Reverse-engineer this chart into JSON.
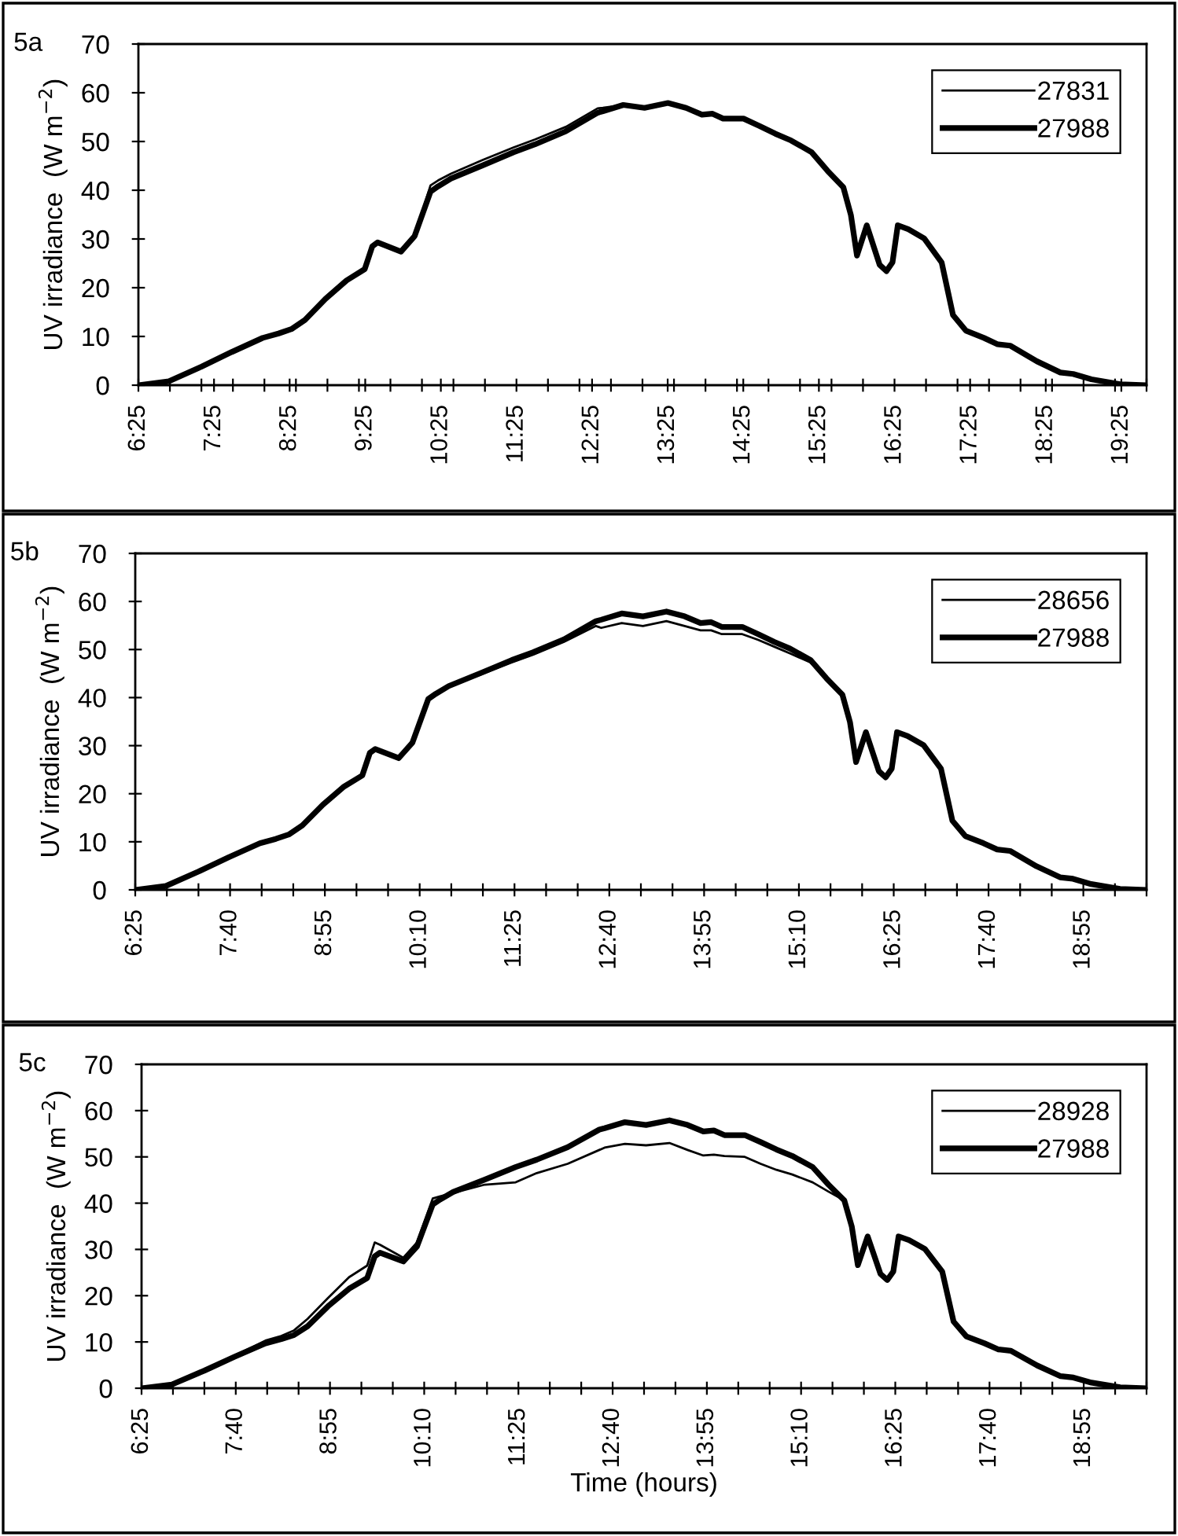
{
  "chart_data": [
    {
      "type": "line",
      "title": "5a",
      "ylabel": "UV irradiance  (W m$^{−2}$)",
      "legend": "top right",
      "x": [
        6.42,
        6.82,
        7.25,
        7.65,
        8.06,
        8.27,
        8.44,
        8.62,
        8.89,
        9.17,
        9.41,
        9.51,
        9.58,
        9.89,
        10.07,
        10.28,
        10.38,
        10.55,
        10.97,
        11.38,
        11.66,
        12.07,
        12.49,
        12.56,
        12.83,
        13.11,
        13.42,
        13.66,
        13.87,
        14.01,
        14.15,
        14.42,
        14.63,
        14.84,
        15.05,
        15.32,
        15.53,
        15.74,
        15.84,
        15.92,
        16.05,
        16.22,
        16.31,
        16.39,
        16.46,
        16.6,
        16.81,
        17.04,
        17.19,
        17.36,
        17.6,
        17.78,
        17.95,
        18.3,
        18.61,
        18.78,
        19.02,
        19.4,
        19.73
      ],
      "series": [
        {
          "name": "27831",
          "color": "#000000",
          "values": [
            0,
            0.8,
            3.8,
            6.8,
            9.7,
            10.6,
            11.5,
            13.4,
            17.7,
            21.5,
            23.8,
            28.5,
            29.3,
            27.4,
            30.6,
            41,
            42,
            43.4,
            46.2,
            48.8,
            50.4,
            53,
            56.8,
            56.9,
            57.5,
            56.9,
            57.9,
            56.9,
            55.5,
            55.7,
            54.7,
            54.7,
            53.2,
            51.6,
            50.2,
            47.8,
            44,
            40.6,
            34.9,
            26.6,
            32.8,
            24.7,
            23.4,
            25.2,
            32.8,
            32,
            30.1,
            25.2,
            14.4,
            11.2,
            9.7,
            8.4,
            8.1,
            4.9,
            2.6,
            2.3,
            1.2,
            0.2,
            0
          ]
        },
        {
          "name": "27988",
          "color": "#000000",
          "values": [
            0,
            0.8,
            3.8,
            6.8,
            9.7,
            10.6,
            11.5,
            13.4,
            17.7,
            21.5,
            23.8,
            28.5,
            29.3,
            27.4,
            30.6,
            39.7,
            40.8,
            42.4,
            45.1,
            47.8,
            49.4,
            52.1,
            55.9,
            56.2,
            57.5,
            56.9,
            57.9,
            56.9,
            55.5,
            55.7,
            54.7,
            54.7,
            53.2,
            51.6,
            50.2,
            47.8,
            44,
            40.6,
            34.9,
            26.6,
            32.8,
            24.7,
            23.4,
            25.2,
            32.8,
            32,
            30.1,
            25.2,
            14.4,
            11.2,
            9.7,
            8.4,
            8.1,
            4.9,
            2.6,
            2.3,
            1.2,
            0.2,
            0
          ]
        }
      ],
      "xlim": [
        6.4167,
        19.75
      ],
      "ylim": [
        0,
        70
      ],
      "yticks": [
        0,
        10,
        20,
        30,
        40,
        50,
        60,
        70
      ],
      "xticks": [
        {
          "value": 6.4167,
          "label": "6:25"
        },
        {
          "value": 7.4167,
          "label": "7:25"
        },
        {
          "value": 8.4167,
          "label": "8:25"
        },
        {
          "value": 9.4167,
          "label": "9:25"
        },
        {
          "value": 10.4167,
          "label": "10:25"
        },
        {
          "value": 11.4167,
          "label": "11:25"
        },
        {
          "value": 12.4167,
          "label": "12:25"
        },
        {
          "value": 13.4167,
          "label": "13:25"
        },
        {
          "value": 14.4167,
          "label": "14:25"
        },
        {
          "value": 15.4167,
          "label": "15:25"
        },
        {
          "value": 16.4167,
          "label": "16:25"
        },
        {
          "value": 17.4167,
          "label": "17:25"
        },
        {
          "value": 18.4167,
          "label": "18:25"
        },
        {
          "value": 19.4167,
          "label": "19:25"
        },
        {
          "value": 6.8333,
          "label": null
        },
        {
          "value": 7.25,
          "label": null
        },
        {
          "value": 7.6667,
          "label": null
        },
        {
          "value": 8.0833,
          "label": null
        },
        {
          "value": 8.5,
          "label": null
        },
        {
          "value": 8.9167,
          "label": null
        },
        {
          "value": 9.3333,
          "label": null
        },
        {
          "value": 9.75,
          "label": null
        },
        {
          "value": 10.1667,
          "label": null
        },
        {
          "value": 10.5833,
          "label": null
        },
        {
          "value": 11.0,
          "label": null
        },
        {
          "value": 11.8333,
          "label": null
        },
        {
          "value": 12.25,
          "label": null
        },
        {
          "value": 12.6667,
          "label": null
        },
        {
          "value": 13.0833,
          "label": null
        },
        {
          "value": 13.5,
          "label": null
        },
        {
          "value": 13.9167,
          "label": null
        },
        {
          "value": 14.3333,
          "label": null
        },
        {
          "value": 14.75,
          "label": null
        },
        {
          "value": 15.1667,
          "label": null
        },
        {
          "value": 15.5833,
          "label": null
        },
        {
          "value": 16.0,
          "label": null
        },
        {
          "value": 16.8333,
          "label": null
        },
        {
          "value": 17.25,
          "label": null
        },
        {
          "value": 17.6667,
          "label": null
        },
        {
          "value": 18.0833,
          "label": null
        },
        {
          "value": 18.5,
          "label": null
        },
        {
          "value": 18.9167,
          "label": null
        },
        {
          "value": 19.3333,
          "label": null
        },
        {
          "value": 19.75,
          "label": null
        }
      ]
    },
    {
      "type": "line",
      "title": "5b",
      "ylabel": "UV irradiance  (W m$^{−2}$)",
      "legend": "top right",
      "x": [
        6.42,
        6.82,
        7.25,
        7.65,
        8.06,
        8.27,
        8.44,
        8.62,
        8.89,
        9.17,
        9.41,
        9.51,
        9.58,
        9.89,
        10.07,
        10.28,
        10.38,
        10.55,
        10.97,
        11.38,
        11.66,
        12.07,
        12.49,
        12.56,
        12.83,
        13.11,
        13.42,
        13.66,
        13.87,
        14.01,
        14.15,
        14.42,
        14.63,
        14.84,
        15.05,
        15.32,
        15.53,
        15.74,
        15.84,
        15.92,
        16.05,
        16.22,
        16.31,
        16.39,
        16.46,
        16.6,
        16.81,
        17.04,
        17.19,
        17.36,
        17.6,
        17.78,
        17.95,
        18.3,
        18.61,
        18.78,
        19.02,
        19.4,
        19.73
      ],
      "series": [
        {
          "name": "28656",
          "color": "#000000",
          "values": [
            0,
            0.8,
            3.8,
            6.8,
            9.7,
            10.6,
            11.5,
            13.4,
            17.7,
            21.5,
            23.8,
            28.5,
            29.3,
            27.4,
            30.6,
            39.7,
            40.8,
            42.4,
            44.8,
            47.3,
            48.9,
            51.6,
            54.9,
            54.5,
            55.5,
            54.9,
            55.9,
            54.9,
            54,
            54,
            53.2,
            53.2,
            52,
            50.6,
            49.2,
            47.3,
            44,
            40.6,
            34.9,
            26.6,
            32.8,
            24.7,
            23.4,
            25.2,
            32.8,
            32,
            30.1,
            25.2,
            14.4,
            11.2,
            9.7,
            8.4,
            8.1,
            4.9,
            2.6,
            2.3,
            1.2,
            0.2,
            0
          ]
        },
        {
          "name": "27988",
          "color": "#000000",
          "values": [
            0,
            0.8,
            3.8,
            6.8,
            9.7,
            10.6,
            11.5,
            13.4,
            17.7,
            21.5,
            23.8,
            28.5,
            29.3,
            27.4,
            30.6,
            39.7,
            40.8,
            42.4,
            45.1,
            47.8,
            49.4,
            52.1,
            55.9,
            56.2,
            57.5,
            56.9,
            57.9,
            56.9,
            55.5,
            55.7,
            54.7,
            54.7,
            53.2,
            51.6,
            50.2,
            47.8,
            44,
            40.6,
            34.9,
            26.6,
            32.8,
            24.7,
            23.4,
            25.2,
            32.8,
            32,
            30.1,
            25.2,
            14.4,
            11.2,
            9.7,
            8.4,
            8.1,
            4.9,
            2.6,
            2.3,
            1.2,
            0.2,
            0
          ]
        }
      ],
      "xlim": [
        6.4167,
        19.75
      ],
      "ylim": [
        0,
        70
      ],
      "yticks": [
        0,
        10,
        20,
        30,
        40,
        50,
        60,
        70
      ],
      "xticks": [
        {
          "value": 6.4167,
          "label": "6:25"
        },
        {
          "value": 7.6667,
          "label": "7:40"
        },
        {
          "value": 8.9167,
          "label": "8:55"
        },
        {
          "value": 10.1667,
          "label": "10:10"
        },
        {
          "value": 11.4167,
          "label": "11:25"
        },
        {
          "value": 12.6667,
          "label": "12:40"
        },
        {
          "value": 13.9167,
          "label": "13:55"
        },
        {
          "value": 15.1667,
          "label": "15:10"
        },
        {
          "value": 16.4167,
          "label": "16:25"
        },
        {
          "value": 17.6667,
          "label": "17:40"
        },
        {
          "value": 18.9167,
          "label": "18:55"
        },
        {
          "value": 6.8333,
          "label": null
        },
        {
          "value": 7.25,
          "label": null
        },
        {
          "value": 8.0833,
          "label": null
        },
        {
          "value": 8.5,
          "label": null
        },
        {
          "value": 9.3333,
          "label": null
        },
        {
          "value": 9.75,
          "label": null
        },
        {
          "value": 10.5833,
          "label": null
        },
        {
          "value": 11.0,
          "label": null
        },
        {
          "value": 11.8333,
          "label": null
        },
        {
          "value": 12.25,
          "label": null
        },
        {
          "value": 13.0833,
          "label": null
        },
        {
          "value": 13.5,
          "label": null
        },
        {
          "value": 14.3333,
          "label": null
        },
        {
          "value": 14.75,
          "label": null
        },
        {
          "value": 15.5833,
          "label": null
        },
        {
          "value": 16.0,
          "label": null
        },
        {
          "value": 16.8333,
          "label": null
        },
        {
          "value": 17.25,
          "label": null
        },
        {
          "value": 18.0833,
          "label": null
        },
        {
          "value": 18.5,
          "label": null
        },
        {
          "value": 19.3333,
          "label": null
        },
        {
          "value": 19.75,
          "label": null
        }
      ]
    },
    {
      "type": "line",
      "title": "5c",
      "ylabel": "UV irradiance  (W m$^{−2}$)",
      "xlabel": "Time (hours)",
      "legend": "top right",
      "x": [
        6.42,
        6.82,
        7.25,
        7.65,
        8.06,
        8.27,
        8.44,
        8.62,
        8.89,
        9.17,
        9.41,
        9.51,
        9.58,
        9.89,
        10.07,
        10.28,
        10.38,
        10.55,
        10.97,
        11.38,
        11.66,
        12.07,
        12.49,
        12.56,
        12.83,
        13.11,
        13.42,
        13.66,
        13.87,
        14.01,
        14.15,
        14.42,
        14.63,
        14.84,
        15.05,
        15.32,
        15.53,
        15.74,
        15.84,
        15.92,
        16.05,
        16.22,
        16.31,
        16.39,
        16.46,
        16.6,
        16.81,
        17.04,
        17.19,
        17.36,
        17.6,
        17.78,
        17.95,
        18.3,
        18.61,
        18.78,
        19.02,
        19.4,
        19.73
      ],
      "series": [
        {
          "name": "28928",
          "color": "#000000",
          "values": [
            0,
            0.6,
            3.6,
            7,
            10.3,
            11.3,
            12.5,
            15,
            19.5,
            24,
            26.5,
            31.5,
            31,
            28.2,
            31.5,
            41,
            41.5,
            42.2,
            44,
            44.5,
            46.5,
            48.5,
            51.5,
            52,
            52.8,
            52.5,
            53,
            51.5,
            50.3,
            50.5,
            50.2,
            50,
            48.5,
            47.2,
            46.2,
            44.5,
            42.5,
            40.6,
            34.9,
            26.6,
            32.8,
            24.7,
            23.4,
            25.2,
            32.8,
            32,
            30.1,
            25.2,
            14.4,
            11.2,
            9.7,
            8.4,
            8.1,
            4.9,
            2.6,
            2.3,
            1.2,
            0.2,
            0
          ]
        },
        {
          "name": "27988",
          "color": "#000000",
          "values": [
            0,
            0.8,
            3.8,
            6.8,
            9.7,
            10.6,
            11.5,
            13.4,
            17.7,
            21.5,
            23.8,
            28.5,
            29.3,
            27.4,
            30.6,
            39.7,
            40.8,
            42.4,
            45.1,
            47.8,
            49.4,
            52.1,
            55.9,
            56.2,
            57.5,
            56.9,
            57.9,
            56.9,
            55.5,
            55.7,
            54.7,
            54.7,
            53.2,
            51.6,
            50.2,
            47.8,
            44,
            40.6,
            34.9,
            26.6,
            32.8,
            24.7,
            23.4,
            25.2,
            32.8,
            32,
            30.1,
            25.2,
            14.4,
            11.2,
            9.7,
            8.4,
            8.1,
            4.9,
            2.6,
            2.3,
            1.2,
            0.2,
            0
          ]
        }
      ],
      "xlim": [
        6.4167,
        19.75
      ],
      "ylim": [
        0,
        70
      ],
      "yticks": [
        0,
        10,
        20,
        30,
        40,
        50,
        60,
        70
      ],
      "xticks": [
        {
          "value": 6.4167,
          "label": "6:25"
        },
        {
          "value": 7.6667,
          "label": "7:40"
        },
        {
          "value": 8.9167,
          "label": "8:55"
        },
        {
          "value": 10.1667,
          "label": "10:10"
        },
        {
          "value": 11.4167,
          "label": "11:25"
        },
        {
          "value": 12.6667,
          "label": "12:40"
        },
        {
          "value": 13.9167,
          "label": "13:55"
        },
        {
          "value": 15.1667,
          "label": "15:10"
        },
        {
          "value": 16.4167,
          "label": "16:25"
        },
        {
          "value": 17.6667,
          "label": "17:40"
        },
        {
          "value": 18.9167,
          "label": "18:55"
        },
        {
          "value": 6.8333,
          "label": null
        },
        {
          "value": 7.25,
          "label": null
        },
        {
          "value": 8.0833,
          "label": null
        },
        {
          "value": 8.5,
          "label": null
        },
        {
          "value": 9.3333,
          "label": null
        },
        {
          "value": 9.75,
          "label": null
        },
        {
          "value": 10.5833,
          "label": null
        },
        {
          "value": 11.0,
          "label": null
        },
        {
          "value": 11.8333,
          "label": null
        },
        {
          "value": 12.25,
          "label": null
        },
        {
          "value": 13.0833,
          "label": null
        },
        {
          "value": 13.5,
          "label": null
        },
        {
          "value": 14.3333,
          "label": null
        },
        {
          "value": 14.75,
          "label": null
        },
        {
          "value": 15.5833,
          "label": null
        },
        {
          "value": 16.0,
          "label": null
        },
        {
          "value": 16.8333,
          "label": null
        },
        {
          "value": 17.25,
          "label": null
        },
        {
          "value": 18.0833,
          "label": null
        },
        {
          "value": 18.5,
          "label": null
        },
        {
          "value": 19.3333,
          "label": null
        },
        {
          "value": 19.75,
          "label": null
        }
      ]
    }
  ]
}
